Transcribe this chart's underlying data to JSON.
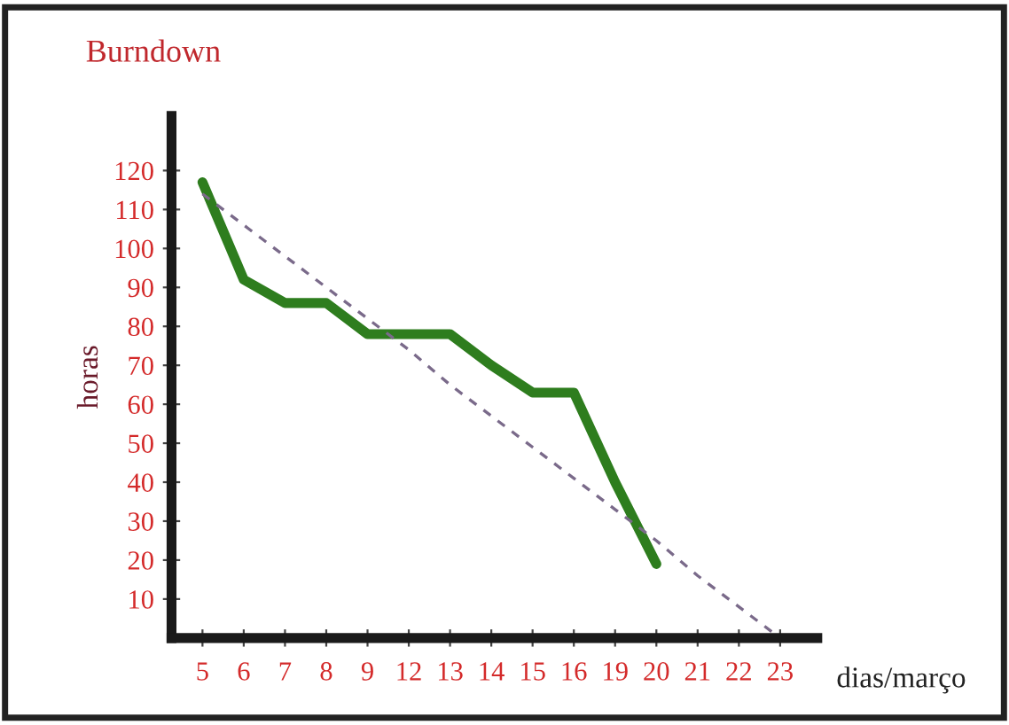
{
  "chart_data": {
    "type": "line",
    "title": "Burndown",
    "xlabel": "dias/março",
    "ylabel": "horas",
    "categories": [
      "5",
      "6",
      "7",
      "8",
      "9",
      "12",
      "13",
      "14",
      "15",
      "16",
      "19",
      "20",
      "21",
      "22",
      "23"
    ],
    "ylim": [
      0,
      134
    ],
    "yticks": [
      10,
      20,
      30,
      40,
      50,
      60,
      70,
      80,
      90,
      100,
      110,
      120
    ],
    "grid": false,
    "legend": false,
    "marker": "none",
    "series": [
      {
        "color": "#2e7d1e",
        "line_style": "solid",
        "values": [
          117,
          92,
          86,
          86,
          78,
          78,
          78,
          70,
          63,
          63,
          40,
          19,
          null,
          null,
          null
        ]
      },
      {
        "color": "#7a6a8a",
        "line_style": "dashed",
        "values": [
          114,
          106,
          98,
          90,
          82,
          74,
          65,
          57,
          49,
          41,
          33,
          25,
          16,
          8,
          0
        ]
      }
    ]
  }
}
